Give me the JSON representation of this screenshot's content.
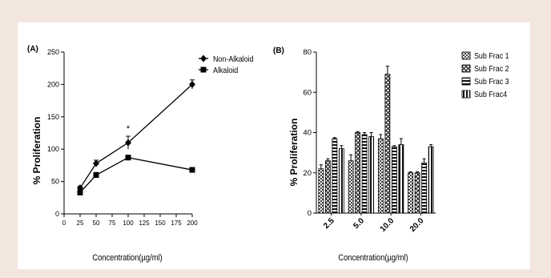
{
  "chart_data": [
    {
      "type": "line",
      "panel_label": "(A)",
      "xlabel": "Concentration(µg/ml)",
      "ylabel": "% Proliferation",
      "xlim": [
        0,
        200
      ],
      "ylim": [
        0,
        250
      ],
      "xticks": [
        0,
        25,
        50,
        75,
        100,
        125,
        150,
        175,
        200
      ],
      "yticks": [
        0,
        50,
        100,
        150,
        200,
        250
      ],
      "legend_position": "top-right",
      "annotation": "*",
      "series": [
        {
          "name": "Non-Alkaloid",
          "x": [
            25,
            50,
            100,
            200
          ],
          "y": [
            40,
            78,
            110,
            200
          ],
          "err": [
            3,
            5,
            10,
            7
          ],
          "marker": "diamond"
        },
        {
          "name": "Alkaloid",
          "x": [
            25,
            50,
            100,
            200
          ],
          "y": [
            33,
            60,
            87,
            68
          ],
          "err": [
            4,
            4,
            3,
            3
          ],
          "marker": "square"
        }
      ]
    },
    {
      "type": "bar",
      "panel_label": "(B)",
      "xlabel": "Concentration(µg/ml)",
      "ylabel": "% Proliferation",
      "ylim": [
        0,
        80
      ],
      "yticks": [
        0,
        20,
        40,
        60,
        80
      ],
      "categories": [
        "2.5",
        "5.0",
        "10.0",
        "20.0"
      ],
      "legend_position": "right",
      "series": [
        {
          "name": "Sub Frac 1",
          "values": [
            22,
            26,
            37,
            20
          ],
          "err": [
            2,
            3,
            2,
            0.5
          ]
        },
        {
          "name": "Sub Frac 2",
          "values": [
            26,
            40,
            69,
            20
          ],
          "err": [
            1,
            0.5,
            4,
            0.5
          ]
        },
        {
          "name": "Sub Frac 3",
          "values": [
            37,
            39,
            33,
            25
          ],
          "err": [
            0.5,
            1,
            0.5,
            2
          ]
        },
        {
          "name": "Sub Frac4",
          "values": [
            32,
            38,
            34,
            33
          ],
          "err": [
            1.5,
            2,
            3,
            1
          ]
        }
      ]
    }
  ]
}
